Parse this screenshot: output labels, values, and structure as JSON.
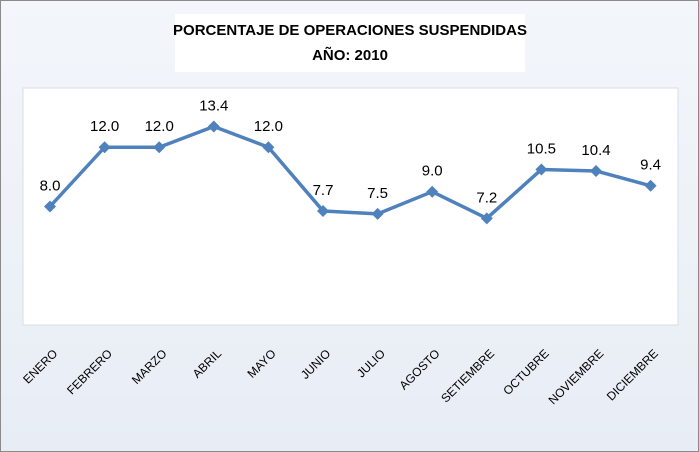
{
  "chart_data": {
    "type": "line",
    "title": "PORCENTAJE DE OPERACIONES SUSPENDIDAS",
    "subtitle": "AÑO: 2010",
    "categories": [
      "ENERO",
      "FEBRERO",
      "MARZO",
      "ABRIL",
      "MAYO",
      "JUNIO",
      "JULIO",
      "AGOSTO",
      "SETIEMBRE",
      "OCTUBRE",
      "NOVIEMBRE",
      "DICIEMBRE"
    ],
    "values": [
      8.0,
      12.0,
      12.0,
      13.4,
      12.0,
      7.7,
      7.5,
      9.0,
      7.2,
      10.5,
      10.4,
      9.4
    ],
    "value_labels": [
      "8.0",
      "12.0",
      "12.0",
      "13.4",
      "12.0",
      "7.7",
      "7.5",
      "9.0",
      "7.2",
      "10.5",
      "10.4",
      "9.4"
    ],
    "color": "#4f81bd",
    "ylim": [
      0,
      16
    ],
    "grid": false
  }
}
